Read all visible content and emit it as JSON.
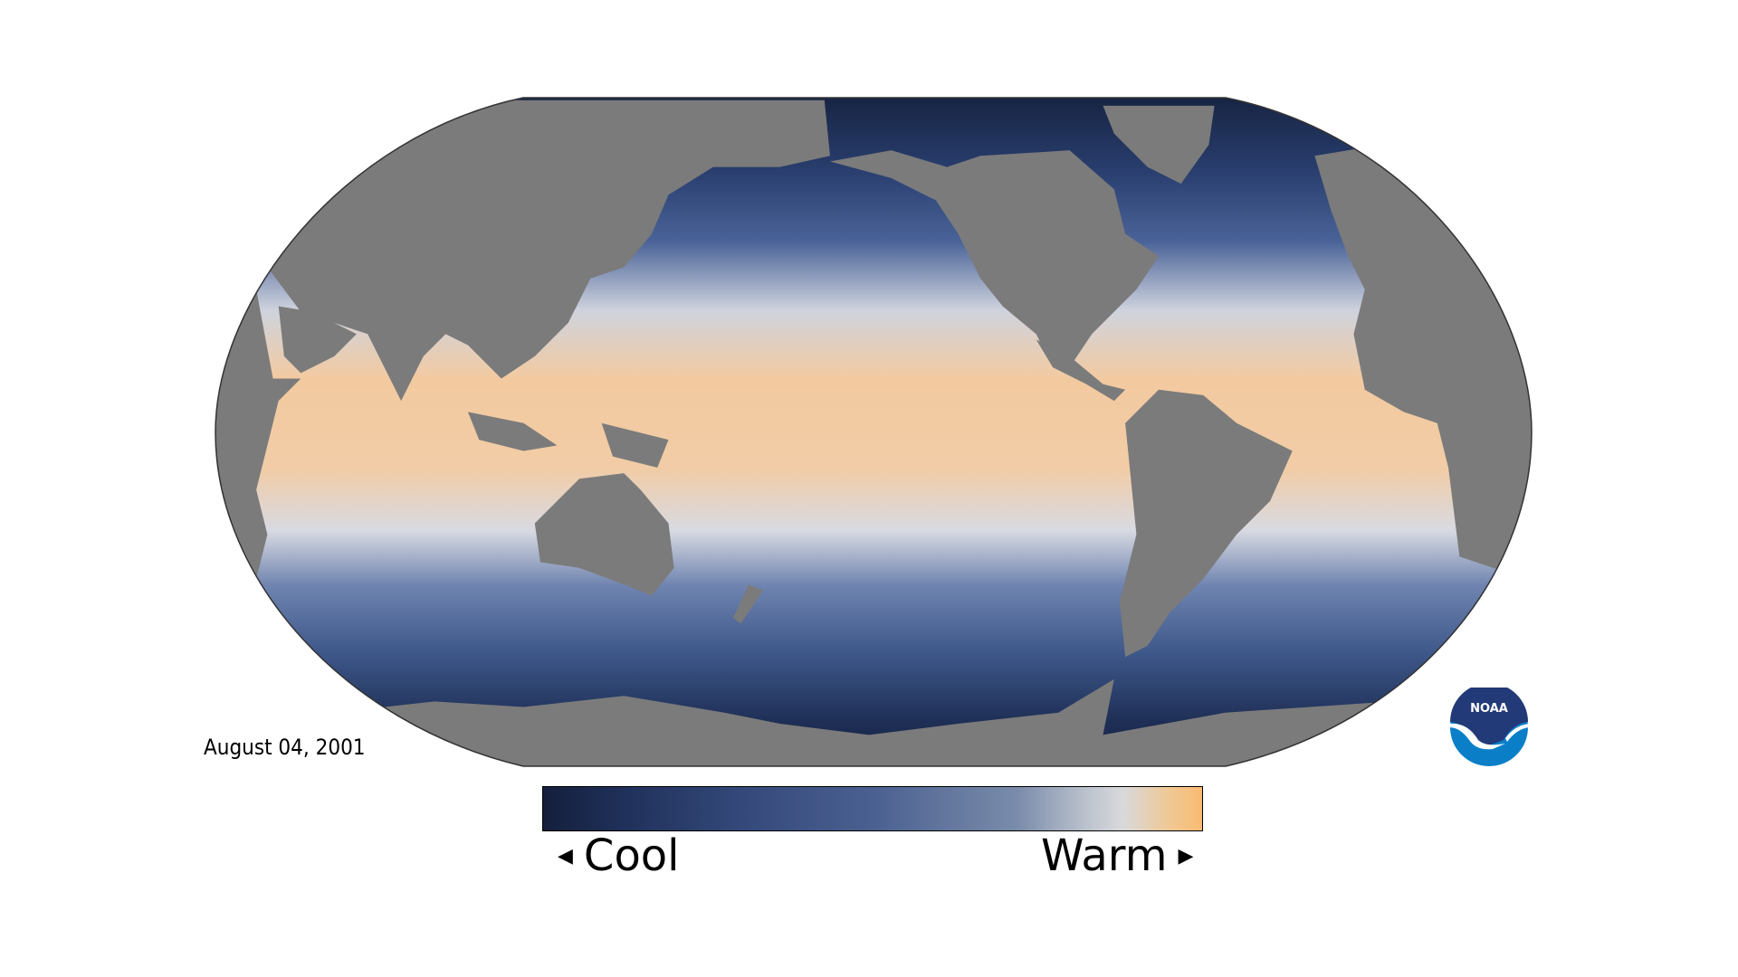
{
  "date": "August 04, 2001",
  "legend": {
    "cool_label": "Cool",
    "warm_label": "Warm",
    "left_arrow": "◀",
    "right_arrow": "▶",
    "colors": [
      "#141f3c",
      "#1f3059",
      "#34497a",
      "#4a6090",
      "#7a8cab",
      "#b9c0cc",
      "#d8d9db",
      "#f0c894",
      "#f9bb72"
    ]
  },
  "logo": {
    "text": "NOAA",
    "navy": "#233a78",
    "blue": "#0a7fc8"
  },
  "map": {
    "land_color": "#7b7b7b",
    "ocean_cold": "#15223f",
    "ocean_mid": "#3f5a92",
    "ocean_neutral": "#dcdde2",
    "ocean_warm": "#f6c890"
  }
}
